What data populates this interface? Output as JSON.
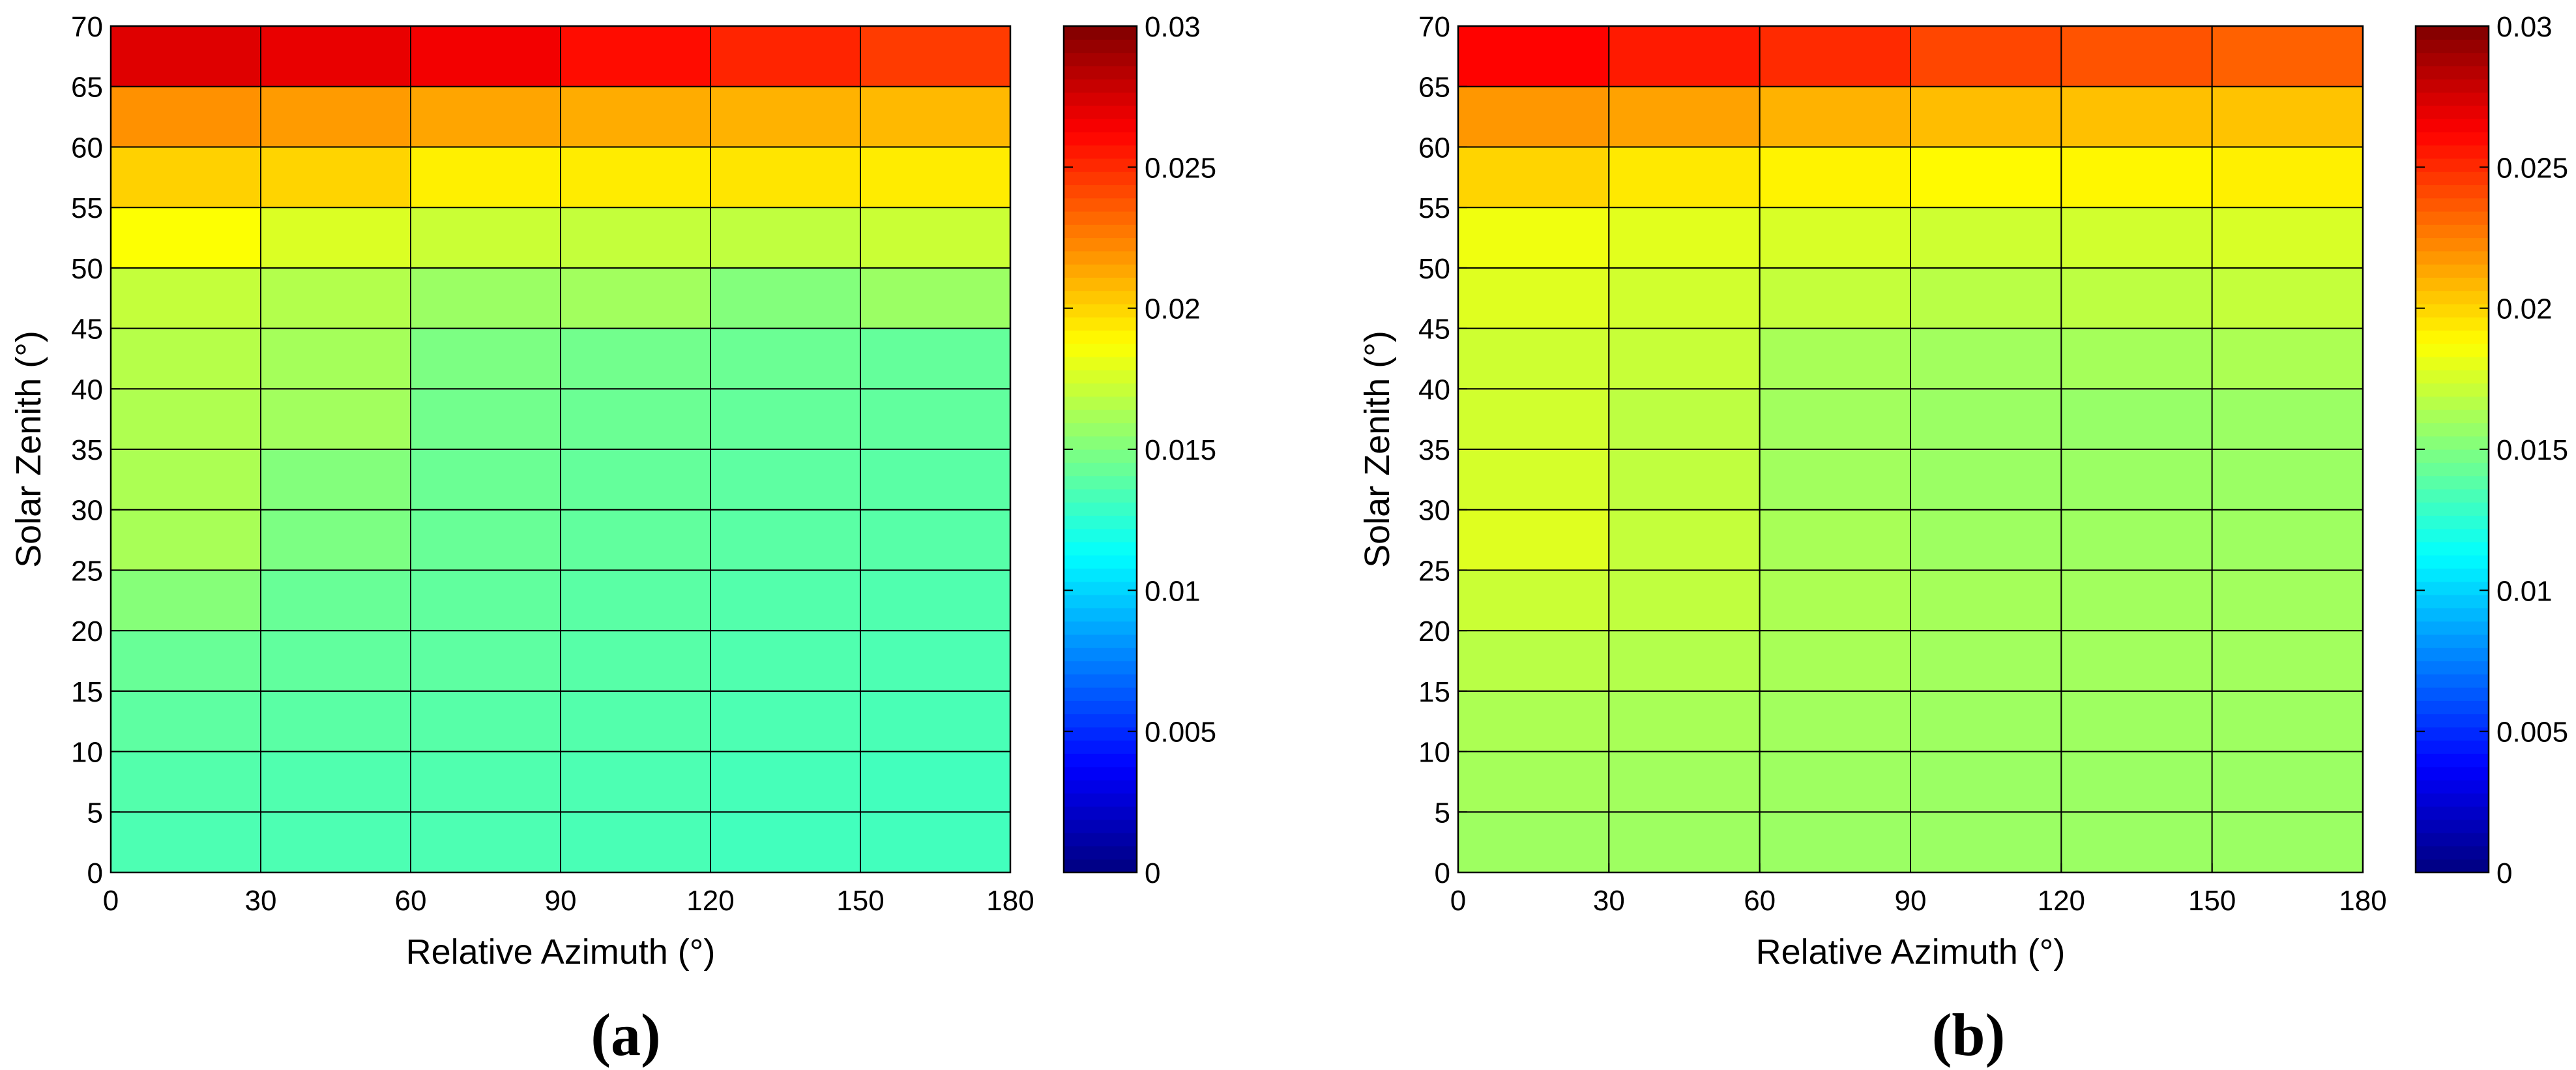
{
  "chart_data": [
    {
      "type": "heatmap",
      "panel_label_open": "(",
      "panel_label_letter": "a",
      "panel_label_close": ")",
      "xlabel": "Relative Azimuth (°)",
      "ylabel": "Solar Zenith (°)",
      "x_edges": [
        0,
        30,
        60,
        90,
        120,
        150,
        180
      ],
      "y_edges": [
        0,
        5,
        10,
        15,
        20,
        25,
        30,
        35,
        40,
        45,
        50,
        55,
        60,
        65,
        70
      ],
      "xlim": [
        0,
        180
      ],
      "ylim": [
        0,
        70
      ],
      "x_ticks": [
        "0",
        "30",
        "60",
        "90",
        "120",
        "150",
        "180"
      ],
      "y_ticks": [
        "0",
        "5",
        "10",
        "15",
        "20",
        "25",
        "30",
        "35",
        "40",
        "45",
        "50",
        "55",
        "60",
        "65",
        "70"
      ],
      "values_rows_bottom_to_top": [
        [
          0.0135,
          0.0135,
          0.0135,
          0.0134,
          0.0132,
          0.0132
        ],
        [
          0.0137,
          0.0136,
          0.0136,
          0.0135,
          0.0133,
          0.0132
        ],
        [
          0.014,
          0.0139,
          0.0138,
          0.0137,
          0.0135,
          0.0134
        ],
        [
          0.0143,
          0.0141,
          0.014,
          0.0138,
          0.0136,
          0.0135
        ],
        [
          0.0152,
          0.0143,
          0.0141,
          0.0139,
          0.0137,
          0.0136
        ],
        [
          0.0162,
          0.0149,
          0.0143,
          0.0141,
          0.0139,
          0.0138
        ],
        [
          0.0163,
          0.0151,
          0.0144,
          0.0142,
          0.014,
          0.0139
        ],
        [
          0.0164,
          0.016,
          0.0146,
          0.0144,
          0.0142,
          0.0141
        ],
        [
          0.0166,
          0.0161,
          0.0149,
          0.0146,
          0.0144,
          0.0142
        ],
        [
          0.017,
          0.0165,
          0.0158,
          0.016,
          0.0151,
          0.0158
        ],
        [
          0.0187,
          0.0177,
          0.0172,
          0.017,
          0.0169,
          0.0172
        ],
        [
          0.0201,
          0.02,
          0.0192,
          0.0193,
          0.0195,
          0.0193
        ],
        [
          0.022,
          0.0217,
          0.0214,
          0.0212,
          0.021,
          0.0208
        ],
        [
          0.0272,
          0.0269,
          0.0266,
          0.0259,
          0.0252,
          0.0245
        ]
      ],
      "colorbar": {
        "colormap": "jet",
        "range": [
          0,
          0.03
        ],
        "ticks": [
          0,
          0.005,
          0.01,
          0.015,
          0.02,
          0.025,
          0.03
        ],
        "tick_labels": [
          "0",
          "0.005",
          "0.01",
          "0.015",
          "0.02",
          "0.025",
          "0.03"
        ]
      }
    },
    {
      "type": "heatmap",
      "panel_label_open": "(",
      "panel_label_letter": "b",
      "panel_label_close": ")",
      "xlabel": "Relative Azimuth (°)",
      "ylabel": "Solar Zenith (°)",
      "x_edges": [
        0,
        30,
        60,
        90,
        120,
        150,
        180
      ],
      "y_edges": [
        0,
        5,
        10,
        15,
        20,
        25,
        30,
        35,
        40,
        45,
        50,
        55,
        60,
        65,
        70
      ],
      "xlim": [
        0,
        180
      ],
      "ylim": [
        0,
        70
      ],
      "x_ticks": [
        "0",
        "30",
        "60",
        "90",
        "120",
        "150",
        "180"
      ],
      "y_ticks": [
        "0",
        "5",
        "10",
        "15",
        "20",
        "25",
        "30",
        "35",
        "40",
        "45",
        "50",
        "55",
        "60",
        "65",
        "70"
      ],
      "values_rows_bottom_to_top": [
        [
          0.0159,
          0.0159,
          0.0158,
          0.0158,
          0.0158,
          0.0158
        ],
        [
          0.0161,
          0.016,
          0.0159,
          0.0158,
          0.0158,
          0.0158
        ],
        [
          0.0163,
          0.0162,
          0.016,
          0.0159,
          0.0159,
          0.0159
        ],
        [
          0.0167,
          0.0165,
          0.0162,
          0.016,
          0.016,
          0.016
        ],
        [
          0.0172,
          0.0169,
          0.0163,
          0.0161,
          0.016,
          0.016
        ],
        [
          0.0178,
          0.017,
          0.0162,
          0.0159,
          0.0159,
          0.0159
        ],
        [
          0.0175,
          0.0169,
          0.016,
          0.0158,
          0.0158,
          0.0158
        ],
        [
          0.0174,
          0.0168,
          0.016,
          0.0158,
          0.0157,
          0.0158
        ],
        [
          0.0173,
          0.0171,
          0.0162,
          0.016,
          0.0161,
          0.0163
        ],
        [
          0.0178,
          0.0174,
          0.017,
          0.0167,
          0.0168,
          0.017
        ],
        [
          0.0183,
          0.0179,
          0.0176,
          0.0173,
          0.0174,
          0.0176
        ],
        [
          0.02,
          0.0194,
          0.0191,
          0.0189,
          0.019,
          0.0192
        ],
        [
          0.0218,
          0.0215,
          0.021,
          0.0207,
          0.0206,
          0.0205
        ],
        [
          0.0262,
          0.0255,
          0.025,
          0.0242,
          0.0238,
          0.0234
        ]
      ],
      "colorbar": {
        "colormap": "jet",
        "range": [
          0,
          0.03
        ],
        "ticks": [
          0,
          0.005,
          0.01,
          0.015,
          0.02,
          0.025,
          0.03
        ],
        "tick_labels": [
          "0",
          "0.005",
          "0.01",
          "0.015",
          "0.02",
          "0.025",
          "0.03"
        ]
      }
    }
  ]
}
